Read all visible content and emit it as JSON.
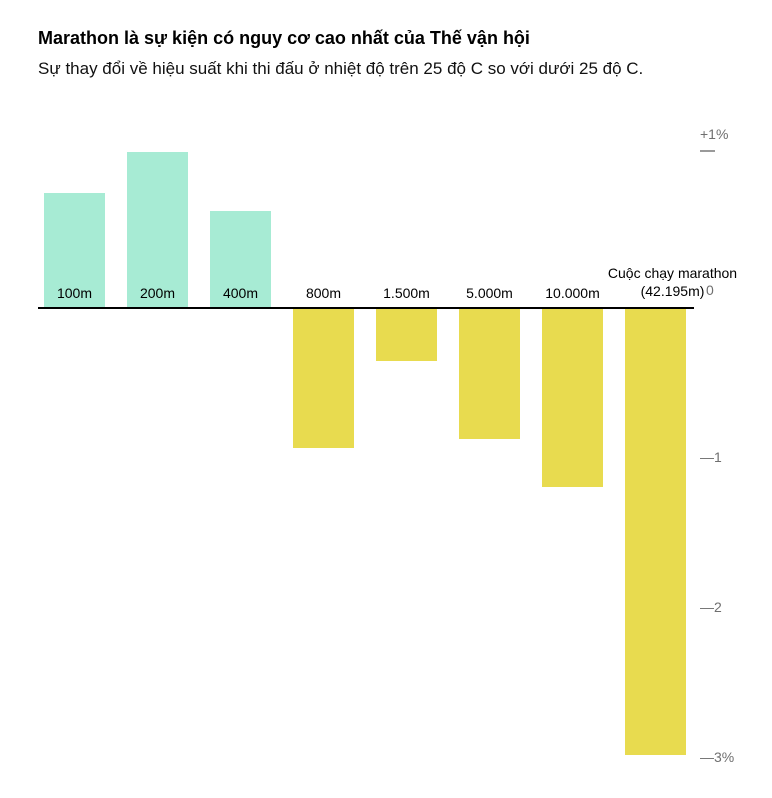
{
  "chart_data": {
    "type": "bar",
    "title": "Marathon là sự kiện có nguy cơ cao nhất của Thế vận hội",
    "subtitle": "Sự thay đổi về hiệu suất khi thi đấu ở nhiệt độ trên 25 độ C so với dưới 25 độ C.",
    "categories": [
      "100m",
      "200m",
      "400m",
      "800m",
      "1.500m",
      "5.000m",
      "10.000m",
      "Cuộc chạy marathon (42.195m)"
    ],
    "values": [
      0.77,
      1.04,
      0.65,
      -0.93,
      -0.35,
      -0.87,
      -1.19,
      -2.98
    ],
    "unit": "%",
    "xlabel": "",
    "ylabel": "",
    "ylim": [
      -3.2,
      1.15
    ],
    "grid": "off",
    "legend": "none",
    "yticks": [
      {
        "value": 1,
        "label": "+1%"
      },
      {
        "value": 0,
        "label": "0"
      },
      {
        "value": -1,
        "label": "—1"
      },
      {
        "value": -2,
        "label": "—2"
      },
      {
        "value": -3,
        "label": "—3%"
      }
    ],
    "colors": {
      "positive": "#a7ebd4",
      "negative": "#e8db4f",
      "axis_line": "#000000",
      "tick_mark": "#9a9a9a",
      "tick_label": "#6f6f6f"
    }
  }
}
